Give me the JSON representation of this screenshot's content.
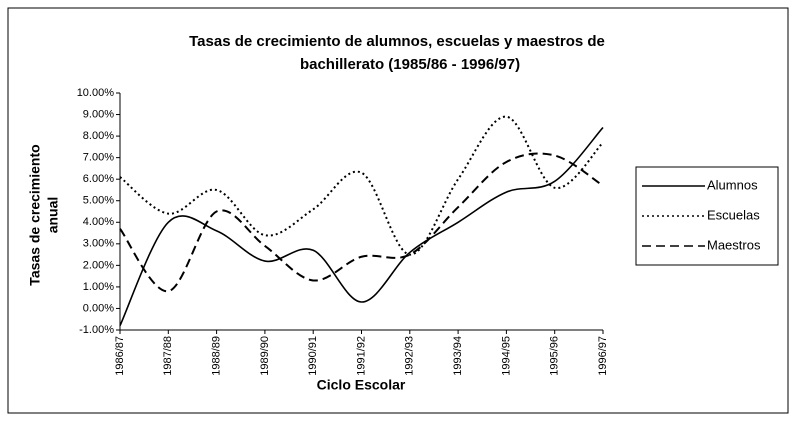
{
  "chart_data": {
    "type": "line",
    "title": [
      "Tasas de crecimiento de alumnos, escuelas y maestros de",
      "bachillerato (1985/86 - 1996/97)"
    ],
    "y_label": [
      "Tasas de crecimiento",
      "anual"
    ],
    "x_label": "Ciclo Escolar",
    "categories": [
      "1986/87",
      "1987/88",
      "1988/89",
      "1989/90",
      "1990/91",
      "1991/92",
      "1992/93",
      "1993/94",
      "1994/95",
      "1995/96",
      "1996/97"
    ],
    "series": [
      {
        "name": "Alumnos",
        "color": "#000000",
        "style": "solid",
        "values": [
          -0.8,
          4.0,
          3.6,
          2.2,
          2.7,
          0.3,
          2.6,
          4.0,
          5.4,
          5.9,
          8.4
        ]
      },
      {
        "name": "Escuelas",
        "color": "#000000",
        "style": "dotted",
        "values": [
          6.1,
          4.4,
          5.5,
          3.4,
          4.6,
          6.3,
          2.5,
          6.0,
          8.9,
          5.6,
          7.7
        ]
      },
      {
        "name": "Maestros",
        "color": "#000000",
        "style": "dashed",
        "values": [
          3.7,
          0.8,
          4.5,
          2.9,
          1.3,
          2.4,
          2.5,
          4.7,
          6.8,
          7.1,
          5.7
        ]
      }
    ],
    "ylim": [
      -1,
      10
    ],
    "yticks": [
      {
        "value": 10,
        "label": "10.00%"
      },
      {
        "value": 9,
        "label": "9.00%"
      },
      {
        "value": 8,
        "label": "8.00%"
      },
      {
        "value": 7,
        "label": "7.00%"
      },
      {
        "value": 6,
        "label": "6.00%"
      },
      {
        "value": 5,
        "label": "5.00%"
      },
      {
        "value": 4,
        "label": "4.00%"
      },
      {
        "value": 3,
        "label": "3.00%"
      },
      {
        "value": 2,
        "label": "2.00%"
      },
      {
        "value": 1,
        "label": "1.00%"
      },
      {
        "value": 0,
        "label": "0.00%"
      },
      {
        "value": -1,
        "label": "-1.00%"
      }
    ],
    "legend": "right"
  }
}
